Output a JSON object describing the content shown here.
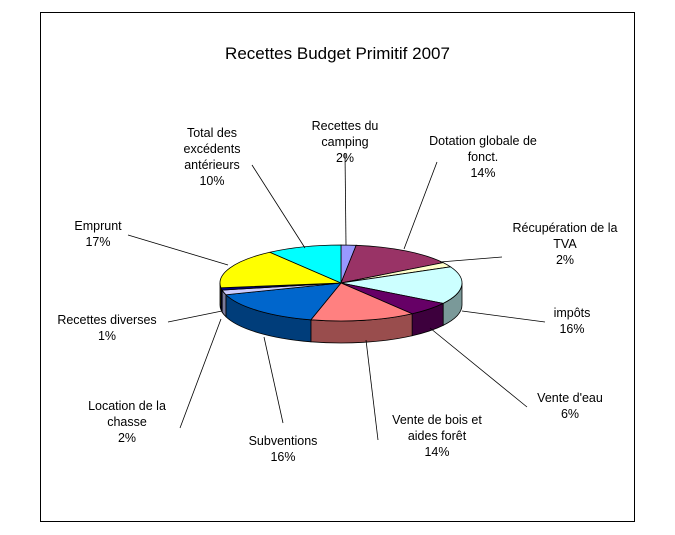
{
  "chart_data": {
    "type": "pie",
    "title": "Recettes Budget Primitif 2007",
    "categories": [
      "Recettes du camping",
      "Dotation globale de fonct.",
      "Récupération de la TVA",
      "impôts",
      "Vente d'eau",
      "Vente de bois et aides forêt",
      "Subventions",
      "Location de la chasse",
      "Recettes diverses",
      "Emprunt",
      "Total des excédents antérieurs"
    ],
    "values": [
      2,
      14,
      2,
      16,
      6,
      14,
      16,
      2,
      1,
      17,
      10
    ],
    "value_labels": [
      "2%",
      "14%",
      "2%",
      "16%",
      "6%",
      "14%",
      "16%",
      "2%",
      "1%",
      "17%",
      "10%"
    ],
    "colors": [
      "#9999ff",
      "#993366",
      "#ffffcc",
      "#ccffff",
      "#660066",
      "#ff8080",
      "#0066cc",
      "#ccccff",
      "#000080",
      "#ffff00",
      "#00ffff"
    ]
  }
}
